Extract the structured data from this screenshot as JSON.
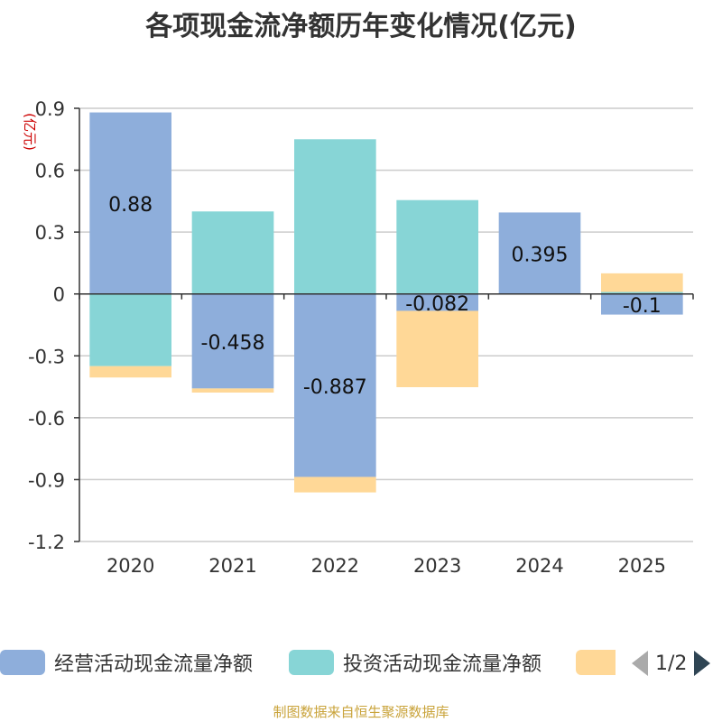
{
  "chart_data": {
    "type": "bar",
    "stacked": true,
    "title": "各项现金流净额历年变化情况(亿元)",
    "ylabel": "(亿元)",
    "xlabel": "",
    "ylim": [
      -1.2,
      0.9
    ],
    "yticks": [
      0.9,
      0.6,
      0.3,
      0,
      -0.3,
      -0.6,
      -0.9,
      -1.2
    ],
    "ytick_labels": [
      "0.9",
      "0.6",
      "0.3",
      "0",
      "-0.3",
      "-0.6",
      "-0.9",
      "-1.2"
    ],
    "categories": [
      "2020",
      "2021",
      "2022",
      "2023",
      "2024",
      "2025"
    ],
    "grid": true,
    "series": [
      {
        "name": "经营活动现金流量净额",
        "color": "#8eaedb",
        "values": [
          0.88,
          -0.458,
          -0.887,
          -0.082,
          0.395,
          -0.1
        ],
        "labels": [
          "0.88",
          "-0.458",
          "-0.887",
          "-0.082",
          "0.395",
          "-0.1"
        ]
      },
      {
        "name": "投资活动现金流量净额",
        "color": "#87d5d6",
        "values": [
          -0.35,
          0.4,
          0.75,
          0.455,
          0.0,
          0.01
        ]
      },
      {
        "name": "",
        "name_note": "the third legend entry's name is cut off in the screenshot",
        "color": "#ffd897",
        "values": [
          -0.055,
          -0.02,
          -0.075,
          -0.37,
          0.0,
          0.09
        ]
      }
    ]
  },
  "legend": {
    "items": [
      {
        "label": "经营活动现金流量净额",
        "color": "#8eaedb"
      },
      {
        "label": "投资活动现金流量净额",
        "color": "#87d5d6"
      },
      {
        "label": "",
        "color": "#ffd897"
      }
    ],
    "page_text": "1/2"
  },
  "source": "制图数据来自恒生聚源数据库"
}
